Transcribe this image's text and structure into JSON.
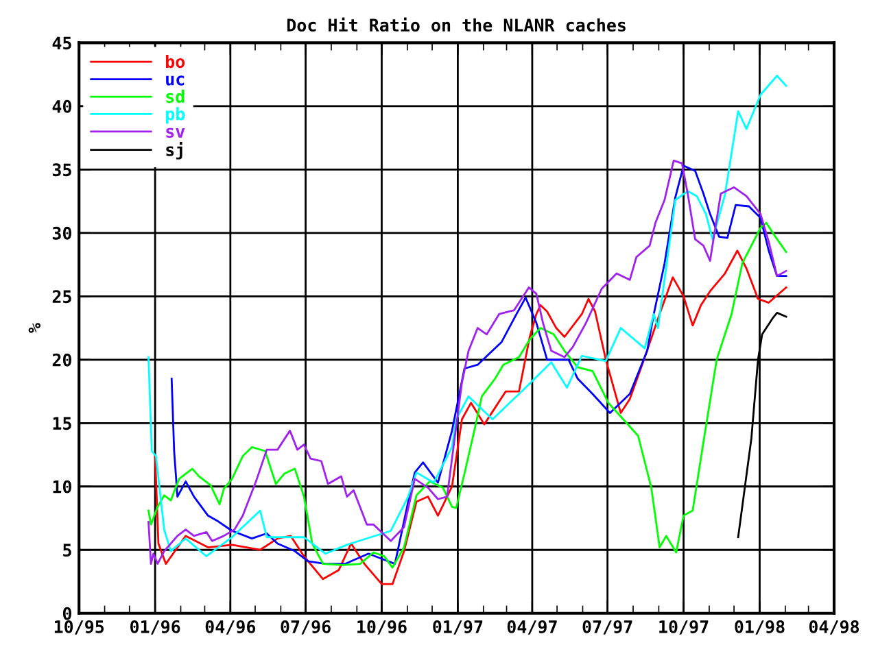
{
  "chart_data": {
    "type": "line",
    "title": "Doc Hit Ratio on the NLANR caches",
    "ylabel": "%",
    "xlim": [
      "1995-10-01",
      "1998-04-01"
    ],
    "ylim": [
      0,
      45
    ],
    "yticks": [
      0,
      5,
      10,
      15,
      20,
      25,
      30,
      35,
      40,
      45
    ],
    "xticks": [
      {
        "value": "1995-10-01",
        "label": "10/95"
      },
      {
        "value": "1995-11-01",
        "label": null
      },
      {
        "value": "1995-12-01",
        "label": null
      },
      {
        "value": "1996-01-01",
        "label": "01/96"
      },
      {
        "value": "1996-02-01",
        "label": null
      },
      {
        "value": "1996-03-01",
        "label": null
      },
      {
        "value": "1996-04-01",
        "label": "04/96"
      },
      {
        "value": "1996-05-01",
        "label": null
      },
      {
        "value": "1996-06-01",
        "label": null
      },
      {
        "value": "1996-07-01",
        "label": "07/96"
      },
      {
        "value": "1996-08-01",
        "label": null
      },
      {
        "value": "1996-09-01",
        "label": null
      },
      {
        "value": "1996-10-01",
        "label": "10/96"
      },
      {
        "value": "1996-11-01",
        "label": null
      },
      {
        "value": "1996-12-01",
        "label": null
      },
      {
        "value": "1997-01-01",
        "label": "01/97"
      },
      {
        "value": "1997-02-01",
        "label": null
      },
      {
        "value": "1997-03-01",
        "label": null
      },
      {
        "value": "1997-04-01",
        "label": "04/97"
      },
      {
        "value": "1997-05-01",
        "label": null
      },
      {
        "value": "1997-06-01",
        "label": null
      },
      {
        "value": "1997-07-01",
        "label": "07/97"
      },
      {
        "value": "1997-08-01",
        "label": null
      },
      {
        "value": "1997-09-01",
        "label": null
      },
      {
        "value": "1997-10-01",
        "label": "10/97"
      },
      {
        "value": "1997-11-01",
        "label": null
      },
      {
        "value": "1997-12-01",
        "label": null
      },
      {
        "value": "1998-01-01",
        "label": "01/98"
      },
      {
        "value": "1998-02-01",
        "label": null
      },
      {
        "value": "1998-03-01",
        "label": null
      },
      {
        "value": "1998-04-01",
        "label": "04/98"
      }
    ],
    "grid": true,
    "legend": "top left",
    "marker": "none",
    "line_style": "solid",
    "series": [
      {
        "name": "bo",
        "color": "#ff0000",
        "x": [
          "1996-01-01",
          "1996-01-05",
          "1996-01-14",
          "1996-02-07",
          "1996-03-05",
          "1996-04-03",
          "1996-05-07",
          "1996-05-28",
          "1996-06-13",
          "1996-06-29",
          "1996-07-22",
          "1996-08-10",
          "1996-08-25",
          "1996-09-10",
          "1996-10-01",
          "1996-10-14",
          "1996-10-28",
          "1996-11-12",
          "1996-11-26",
          "1996-12-08",
          "1996-12-25",
          "1997-01-06",
          "1997-01-17",
          "1997-02-02",
          "1997-02-28",
          "1997-03-16",
          "1997-03-29",
          "1997-04-06",
          "1997-04-11",
          "1997-04-19",
          "1997-04-30",
          "1997-05-10",
          "1997-05-31",
          "1997-06-08",
          "1997-06-16",
          "1997-06-29",
          "1997-07-17",
          "1997-07-28",
          "1997-08-13",
          "1997-09-02",
          "1997-09-18",
          "1997-10-01",
          "1997-10-12",
          "1997-10-22",
          "1997-11-02",
          "1997-11-20",
          "1997-12-05",
          "1997-12-16",
          "1997-12-30",
          "1998-01-12",
          "1998-02-02"
        ],
        "values": [
          12.4,
          5.5,
          3.9,
          6.1,
          5.2,
          5.4,
          5.0,
          5.9,
          6.1,
          4.5,
          2.7,
          3.4,
          5.5,
          3.9,
          2.3,
          2.3,
          4.9,
          8.8,
          9.2,
          7.7,
          10.0,
          15.3,
          16.6,
          14.9,
          17.5,
          17.5,
          21.8,
          23.6,
          24.3,
          23.8,
          22.5,
          21.8,
          23.6,
          24.8,
          23.8,
          20.0,
          15.8,
          16.9,
          19.8,
          23.6,
          26.5,
          25.0,
          22.7,
          24.3,
          25.4,
          26.8,
          28.6,
          27.2,
          24.8,
          24.5,
          25.7
        ]
      },
      {
        "name": "uc",
        "color": "#0000ff",
        "x": [
          "1996-01-21",
          "1996-01-24",
          "1996-01-28",
          "1996-02-07",
          "1996-02-17",
          "1996-03-05",
          "1996-03-16",
          "1996-04-03",
          "1996-04-27",
          "1996-05-15",
          "1996-05-28",
          "1996-06-18",
          "1996-07-04",
          "1996-07-25",
          "1996-08-18",
          "1996-09-15",
          "1996-10-01",
          "1996-10-17",
          "1996-11-02",
          "1996-11-10",
          "1996-11-20",
          "1996-12-08",
          "1996-12-25",
          "1997-01-09",
          "1997-01-25",
          "1997-02-23",
          "1997-03-13",
          "1997-03-24",
          "1997-04-06",
          "1997-04-19",
          "1997-05-15",
          "1997-05-26",
          "1997-06-13",
          "1997-07-04",
          "1997-07-28",
          "1997-08-18",
          "1997-08-26",
          "1997-09-08",
          "1997-09-21",
          "1997-10-01",
          "1997-10-15",
          "1997-10-25",
          "1997-11-02",
          "1997-11-13",
          "1997-11-23",
          "1997-12-03",
          "1997-12-19",
          "1998-01-02",
          "1998-01-12",
          "1998-01-22",
          "1998-02-02"
        ],
        "values": [
          18.5,
          12.8,
          9.2,
          10.4,
          9.2,
          7.7,
          7.3,
          6.5,
          5.9,
          6.3,
          5.5,
          4.9,
          4.1,
          3.9,
          3.9,
          4.7,
          4.3,
          3.9,
          8.8,
          11.1,
          11.9,
          10.3,
          14.4,
          19.3,
          19.6,
          21.4,
          23.6,
          24.9,
          22.9,
          20.0,
          20.0,
          18.5,
          17.3,
          15.8,
          17.3,
          20.7,
          23.6,
          27.6,
          32.8,
          35.3,
          34.9,
          33.1,
          31.5,
          29.7,
          29.6,
          32.2,
          32.1,
          31.2,
          28.6,
          26.6,
          26.6
        ]
      },
      {
        "name": "sd",
        "color": "#00ff00",
        "x": [
          "1995-12-24",
          "1995-12-27",
          "1996-01-04",
          "1996-01-12",
          "1996-01-20",
          "1996-01-30",
          "1996-02-15",
          "1996-02-23",
          "1996-03-08",
          "1996-03-19",
          "1996-03-24",
          "1996-04-03",
          "1996-04-16",
          "1996-04-27",
          "1996-05-13",
          "1996-05-26",
          "1996-06-05",
          "1996-06-18",
          "1996-06-29",
          "1996-07-09",
          "1996-07-22",
          "1996-08-15",
          "1996-09-05",
          "1996-09-21",
          "1996-10-04",
          "1996-10-14",
          "1996-10-28",
          "1996-11-12",
          "1996-11-28",
          "1996-12-14",
          "1996-12-25",
          "1996-12-30",
          "1997-01-09",
          "1997-01-22",
          "1997-01-30",
          "1997-02-15",
          "1997-02-25",
          "1997-03-16",
          "1997-03-29",
          "1997-04-11",
          "1997-04-27",
          "1997-05-10",
          "1997-05-26",
          "1997-06-13",
          "1997-07-02",
          "1997-07-20",
          "1997-08-07",
          "1997-08-23",
          "1997-09-02",
          "1997-09-10",
          "1997-09-22",
          "1997-10-01",
          "1997-10-12",
          "1997-10-25",
          "1997-11-10",
          "1997-11-28",
          "1997-12-11",
          "1998-01-02",
          "1998-01-09",
          "1998-01-20",
          "1998-02-02"
        ],
        "values": [
          8.1,
          7.0,
          8.4,
          9.3,
          8.9,
          10.6,
          11.4,
          10.8,
          10.1,
          8.6,
          9.8,
          10.6,
          12.4,
          13.1,
          12.8,
          10.2,
          11.0,
          11.4,
          9.2,
          5.5,
          3.9,
          3.8,
          3.9,
          4.8,
          4.5,
          3.6,
          5.2,
          9.3,
          10.4,
          9.9,
          8.4,
          8.3,
          11.0,
          14.7,
          17.1,
          18.5,
          19.6,
          20.2,
          21.6,
          22.5,
          22.0,
          20.7,
          19.4,
          19.1,
          16.6,
          15.3,
          14.0,
          9.9,
          5.2,
          6.1,
          4.8,
          7.7,
          8.1,
          13.5,
          20.0,
          23.6,
          27.6,
          30.4,
          30.8,
          29.7,
          28.5
        ]
      },
      {
        "name": "pb",
        "color": "#00ffff",
        "x": [
          "1995-12-24",
          "1995-12-28",
          "1996-01-02",
          "1996-01-12",
          "1996-01-20",
          "1996-02-07",
          "1996-03-03",
          "1996-04-03",
          "1996-05-07",
          "1996-05-15",
          "1996-06-29",
          "1996-07-25",
          "1996-08-20",
          "1996-10-12",
          "1996-11-02",
          "1996-11-12",
          "1996-12-03",
          "1996-12-25",
          "1996-12-30",
          "1997-01-14",
          "1997-02-12",
          "1997-03-24",
          "1997-04-24",
          "1997-05-13",
          "1997-05-31",
          "1997-06-29",
          "1997-07-17",
          "1997-08-15",
          "1997-08-26",
          "1997-08-31",
          "1997-09-21",
          "1997-10-06",
          "1997-10-17",
          "1997-10-28",
          "1997-11-05",
          "1997-11-20",
          "1997-12-06",
          "1997-12-16",
          "1998-01-02",
          "1998-01-22",
          "1998-02-02"
        ],
        "values": [
          20.2,
          12.8,
          12.4,
          6.6,
          4.9,
          5.9,
          4.5,
          6.0,
          8.1,
          6.0,
          6.0,
          4.7,
          5.4,
          6.5,
          9.2,
          11.1,
          10.3,
          13.1,
          15.3,
          17.1,
          15.3,
          17.8,
          19.8,
          17.8,
          20.3,
          19.9,
          22.5,
          20.9,
          23.6,
          22.5,
          32.6,
          33.3,
          32.9,
          31.5,
          29.5,
          33.0,
          39.6,
          38.2,
          40.9,
          42.4,
          41.6
        ]
      },
      {
        "name": "sv",
        "color": "#a020f0",
        "x": [
          "1995-12-24",
          "1995-12-27",
          "1995-12-30",
          "1996-01-04",
          "1996-01-12",
          "1996-01-28",
          "1996-02-07",
          "1996-02-17",
          "1996-03-03",
          "1996-03-10",
          "1996-03-24",
          "1996-04-06",
          "1996-04-16",
          "1996-05-02",
          "1996-05-15",
          "1996-05-28",
          "1996-06-12",
          "1996-06-21",
          "1996-06-29",
          "1996-07-07",
          "1996-07-20",
          "1996-07-28",
          "1996-08-13",
          "1996-08-20",
          "1996-08-28",
          "1996-09-13",
          "1996-09-21",
          "1996-10-12",
          "1996-10-28",
          "1996-11-10",
          "1996-11-26",
          "1996-12-08",
          "1996-12-19",
          "1996-12-25",
          "1997-01-06",
          "1997-01-14",
          "1997-01-25",
          "1997-02-05",
          "1997-02-20",
          "1997-03-10",
          "1997-03-28",
          "1997-04-06",
          "1997-04-14",
          "1997-04-24",
          "1997-05-10",
          "1997-05-20",
          "1997-06-05",
          "1997-06-24",
          "1997-07-12",
          "1997-07-28",
          "1997-08-05",
          "1997-08-21",
          "1997-08-28",
          "1997-09-08",
          "1997-09-19",
          "1997-09-29",
          "1997-10-06",
          "1997-10-15",
          "1997-10-25",
          "1997-11-02",
          "1997-11-15",
          "1997-12-01",
          "1997-12-16",
          "1998-01-02",
          "1998-01-12",
          "1998-01-22",
          "1998-02-02"
        ],
        "values": [
          7.2,
          3.9,
          4.7,
          3.9,
          4.9,
          6.1,
          6.6,
          6.1,
          6.4,
          5.7,
          6.1,
          6.6,
          7.7,
          10.4,
          12.9,
          12.9,
          14.4,
          12.9,
          13.3,
          12.2,
          12.0,
          10.2,
          10.8,
          9.2,
          9.7,
          7.0,
          7.0,
          5.7,
          6.8,
          10.6,
          9.9,
          9.0,
          9.2,
          12.2,
          18.2,
          20.7,
          22.5,
          22.0,
          23.6,
          23.9,
          25.7,
          25.2,
          22.9,
          20.7,
          20.2,
          21.0,
          22.9,
          25.6,
          26.8,
          26.3,
          28.1,
          29.0,
          30.8,
          32.6,
          35.7,
          35.5,
          33.1,
          29.5,
          29.0,
          27.8,
          33.1,
          33.6,
          32.9,
          31.5,
          29.3,
          26.6,
          27.0
        ]
      },
      {
        "name": "sj",
        "color": "#000000",
        "x": [
          "1997-12-06",
          "1997-12-14",
          "1997-12-22",
          "1997-12-30",
          "1998-01-04",
          "1998-01-17",
          "1998-01-22",
          "1998-02-02"
        ],
        "values": [
          6.0,
          9.9,
          13.8,
          20.0,
          22.0,
          23.3,
          23.7,
          23.4
        ]
      }
    ]
  }
}
